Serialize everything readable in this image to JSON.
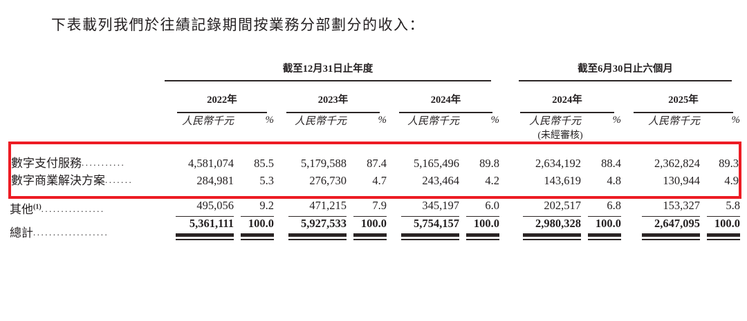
{
  "title": "下表載列我們於往績記錄期間按業務分部劃分的收入：",
  "table": {
    "groups": [
      {
        "label": "截至12月31日止年度",
        "years": [
          "2022年",
          "2023年",
          "2024年"
        ]
      },
      {
        "label": "截至6月30日止六個月",
        "years": [
          "2024年",
          "2025年"
        ]
      }
    ],
    "unit_label": "人民幣千元",
    "pct_label": "%",
    "unaudited_note": "(未經審核)",
    "rows": [
      {
        "label": "數字支付服務",
        "dots": "...........",
        "highlight": true,
        "underline": "none",
        "values": [
          "4,581,074",
          "85.5",
          "5,179,588",
          "87.4",
          "5,165,496",
          "89.8",
          "2,634,192",
          "88.4",
          "2,362,824",
          "89.3"
        ]
      },
      {
        "label": "數字商業解決方案",
        "dots": ".......",
        "highlight": true,
        "underline": "none",
        "values": [
          "284,981",
          "5.3",
          "276,730",
          "4.7",
          "243,464",
          "4.2",
          "143,619",
          "4.8",
          "130,944",
          "4.9"
        ]
      },
      {
        "label": "其他",
        "sup": "(1)",
        "dots": "................",
        "highlight": false,
        "underline": "single",
        "values": [
          "495,056",
          "9.2",
          "471,215",
          "7.9",
          "345,197",
          "6.0",
          "202,517",
          "6.8",
          "153,327",
          "5.8"
        ]
      },
      {
        "label": "總計",
        "dots": "...................",
        "highlight": false,
        "bold": true,
        "underline": "double",
        "values": [
          "5,361,111",
          "100.0",
          "5,927,533",
          "100.0",
          "5,754,157",
          "100.0",
          "2,980,328",
          "100.0",
          "2,647,095",
          "100.0"
        ]
      }
    ]
  },
  "colors": {
    "highlight_box": "#ed1c24",
    "text": "#231f20",
    "rule": "#2a2424"
  }
}
